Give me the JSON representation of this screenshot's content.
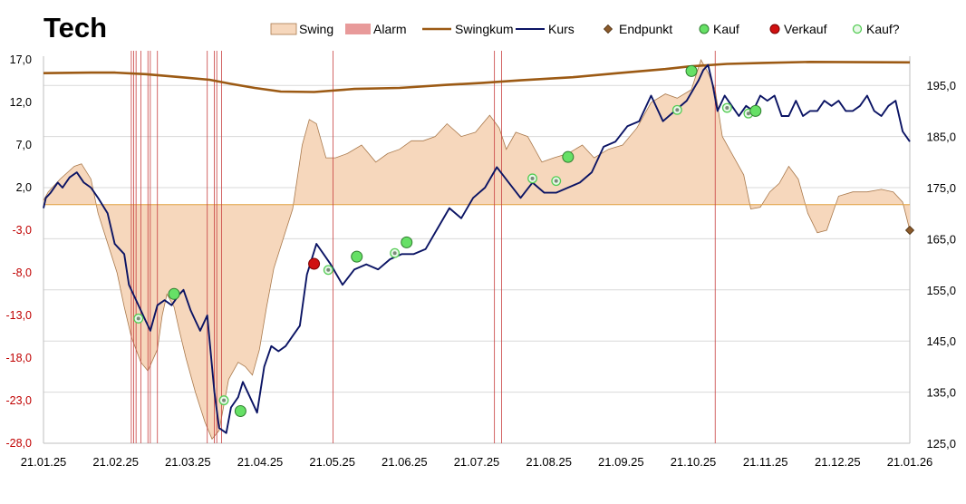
{
  "chart_data": {
    "type": "line",
    "title": "Tech",
    "legend": {
      "placement": "top-right",
      "items": [
        {
          "key": "swing",
          "label": "Swing",
          "kind": "area",
          "color": "#F6D7BC"
        },
        {
          "key": "alarm",
          "label": "Alarm",
          "kind": "rect",
          "color": "#E89A9A"
        },
        {
          "key": "swingkum",
          "label": "Swingkum",
          "kind": "line",
          "color": "#9C5A14"
        },
        {
          "key": "kurs",
          "label": "Kurs",
          "kind": "line",
          "color": "#0B1464"
        },
        {
          "key": "endpunkt",
          "label": "Endpunkt",
          "kind": "diamond",
          "color": "#8B5A2B"
        },
        {
          "key": "kauf",
          "label": "Kauf",
          "kind": "circle",
          "color": "#66E066"
        },
        {
          "key": "verkauf",
          "label": "Verkauf",
          "kind": "circle",
          "color": "#D01010"
        },
        {
          "key": "kauf_q",
          "label": "Kauf?",
          "kind": "ring",
          "color": "#66E066"
        }
      ]
    },
    "x_range": [
      "2025-01-21",
      "2026-01-21"
    ],
    "x_ticks": [
      "21.01.25",
      "21.02.25",
      "21.03.25",
      "21.04.25",
      "21.05.25",
      "21.06.25",
      "21.07.25",
      "21.08.25",
      "21.09.25",
      "21.10.25",
      "21.11.25",
      "21.12.25",
      "21.01.26"
    ],
    "y_left": {
      "range": [
        -28,
        17
      ],
      "ticks": [
        17.0,
        12.0,
        7.0,
        2.0,
        -3.0,
        -8.0,
        -13.0,
        -18.0,
        -23.0,
        -28.0
      ],
      "labels": [
        "17,0",
        "12,0",
        "7,0",
        "2,0",
        "-3,0",
        "-8,0",
        "-13,0",
        "-18,0",
        "-23,0",
        "-28,0"
      ]
    },
    "y_right": {
      "range": [
        125,
        200
      ],
      "ticks": [
        195,
        185,
        175,
        165,
        155,
        145,
        135,
        125
      ],
      "labels": [
        "195,0",
        "185,0",
        "175,0",
        "165,0",
        "155,0",
        "145,0",
        "135,0",
        "125,0"
      ]
    },
    "grid": true,
    "colors": {
      "swing_fill": "#F6D7BC",
      "swing_edge": "#A9794C",
      "alarm": "#C84040",
      "zero_line": "#E0A040",
      "swingkum": "#9C5A14",
      "kurs": "#0B1464",
      "grid": "#D9D9D9",
      "negative_label": "#C00000",
      "axis_text": "#000000"
    },
    "alarm_dates": [
      "2025-02-27",
      "2025-02-28",
      "2025-03-01",
      "2025-03-03",
      "2025-03-06",
      "2025-03-07",
      "2025-03-10",
      "2025-03-31",
      "2025-04-03",
      "2025-04-04",
      "2025-04-06",
      "2025-05-23",
      "2025-07-30",
      "2025-08-02",
      "2025-10-31"
    ],
    "series": [
      {
        "name": "Swing",
        "axis": "left",
        "x": [
          "2025-01-21",
          "2025-01-23",
          "2025-01-28",
          "2025-02-03",
          "2025-02-06",
          "2025-02-10",
          "2025-02-13",
          "2025-02-17",
          "2025-02-21",
          "2025-02-24",
          "2025-02-27",
          "2025-03-03",
          "2025-03-06",
          "2025-03-10",
          "2025-03-12",
          "2025-03-14",
          "2025-03-17",
          "2025-03-19",
          "2025-03-22",
          "2025-03-26",
          "2025-03-30",
          "2025-04-02",
          "2025-04-05",
          "2025-04-07",
          "2025-04-09",
          "2025-04-13",
          "2025-04-16",
          "2025-04-19",
          "2025-04-22",
          "2025-04-25",
          "2025-04-28",
          "2025-05-02",
          "2025-05-06",
          "2025-05-10",
          "2025-05-13",
          "2025-05-16",
          "2025-05-20",
          "2025-05-24",
          "2025-05-29",
          "2025-06-04",
          "2025-06-10",
          "2025-06-15",
          "2025-06-20",
          "2025-06-25",
          "2025-06-30",
          "2025-07-05",
          "2025-07-10",
          "2025-07-16",
          "2025-07-22",
          "2025-07-28",
          "2025-08-01",
          "2025-08-04",
          "2025-08-08",
          "2025-08-13",
          "2025-08-19",
          "2025-08-24",
          "2025-08-30",
          "2025-09-05",
          "2025-09-10",
          "2025-09-16",
          "2025-09-22",
          "2025-09-28",
          "2025-10-04",
          "2025-10-10",
          "2025-10-15",
          "2025-10-21",
          "2025-10-25",
          "2025-10-28",
          "2025-10-31",
          "2025-11-03",
          "2025-11-07",
          "2025-11-12",
          "2025-11-15",
          "2025-11-19",
          "2025-11-23",
          "2025-11-27",
          "2025-12-01",
          "2025-12-05",
          "2025-12-09",
          "2025-12-13",
          "2025-12-17",
          "2025-12-22",
          "2025-12-28",
          "2026-01-03",
          "2026-01-09",
          "2026-01-14",
          "2026-01-18",
          "2026-01-21"
        ],
        "values": [
          0.5,
          1.5,
          3.0,
          4.5,
          4.8,
          3.0,
          -1.0,
          -4.5,
          -8.0,
          -12.0,
          -15.5,
          -18.5,
          -19.5,
          -17.0,
          -13.0,
          -10.5,
          -12.0,
          -14.5,
          -18.0,
          -22.0,
          -25.5,
          -27.5,
          -26.5,
          -23.5,
          -20.5,
          -18.5,
          -19.0,
          -20.0,
          -17.0,
          -12.0,
          -7.5,
          -4.0,
          -0.5,
          7.0,
          10.0,
          9.5,
          5.5,
          5.5,
          6.0,
          7.0,
          5.0,
          6.0,
          6.5,
          7.5,
          7.5,
          8.0,
          9.5,
          8.0,
          8.5,
          10.5,
          9.0,
          6.5,
          8.5,
          8.0,
          5.0,
          5.5,
          6.0,
          7.0,
          5.5,
          6.5,
          7.0,
          9.0,
          12.0,
          13.0,
          12.5,
          13.5,
          17.0,
          15.5,
          13.5,
          8.0,
          6.0,
          3.5,
          -0.5,
          -0.3,
          1.5,
          2.5,
          4.5,
          3.0,
          -1.0,
          -3.3,
          -3.0,
          1.0,
          1.5,
          1.5,
          1.8,
          1.5,
          0.3,
          -3.0
        ]
      },
      {
        "name": "Swingkum",
        "axis": "right",
        "x": [
          "2025-01-21",
          "2025-02-10",
          "2025-02-20",
          "2025-03-05",
          "2025-03-20",
          "2025-04-01",
          "2025-04-10",
          "2025-04-20",
          "2025-05-01",
          "2025-05-15",
          "2025-06-01",
          "2025-06-20",
          "2025-07-10",
          "2025-07-25",
          "2025-08-10",
          "2025-09-01",
          "2025-09-20",
          "2025-10-10",
          "2025-10-20",
          "2025-11-05",
          "2025-11-20",
          "2025-12-10",
          "2026-01-21"
        ],
        "values": [
          197.4,
          197.5,
          197.5,
          197.2,
          196.6,
          196.1,
          195.3,
          194.5,
          193.8,
          193.7,
          194.3,
          194.5,
          195.1,
          195.5,
          196.0,
          196.6,
          197.4,
          198.2,
          198.7,
          199.2,
          199.4,
          199.6,
          199.5
        ]
      },
      {
        "name": "Kurs",
        "axis": "right",
        "x": [
          "2025-01-21",
          "2025-01-22",
          "2025-01-24",
          "2025-01-27",
          "2025-01-29",
          "2025-02-01",
          "2025-02-04",
          "2025-02-07",
          "2025-02-10",
          "2025-02-13",
          "2025-02-17",
          "2025-02-20",
          "2025-02-24",
          "2025-02-26",
          "2025-02-28",
          "2025-03-03",
          "2025-03-05",
          "2025-03-07",
          "2025-03-10",
          "2025-03-13",
          "2025-03-16",
          "2025-03-19",
          "2025-03-21",
          "2025-03-24",
          "2025-03-26",
          "2025-03-28",
          "2025-03-31",
          "2025-04-03",
          "2025-04-05",
          "2025-04-08",
          "2025-04-10",
          "2025-04-13",
          "2025-04-15",
          "2025-04-18",
          "2025-04-21",
          "2025-04-24",
          "2025-04-27",
          "2025-04-30",
          "2025-05-03",
          "2025-05-06",
          "2025-05-09",
          "2025-05-12",
          "2025-05-16",
          "2025-05-19",
          "2025-05-22",
          "2025-05-27",
          "2025-06-01",
          "2025-06-06",
          "2025-06-11",
          "2025-06-16",
          "2025-06-21",
          "2025-06-26",
          "2025-07-01",
          "2025-07-06",
          "2025-07-11",
          "2025-07-16",
          "2025-07-21",
          "2025-07-26",
          "2025-07-31",
          "2025-08-05",
          "2025-08-10",
          "2025-08-15",
          "2025-08-20",
          "2025-08-25",
          "2025-08-30",
          "2025-09-04",
          "2025-09-09",
          "2025-09-14",
          "2025-09-19",
          "2025-09-24",
          "2025-09-29",
          "2025-10-04",
          "2025-10-09",
          "2025-10-14",
          "2025-10-19",
          "2025-10-24",
          "2025-10-26",
          "2025-10-28",
          "2025-10-30",
          "2025-11-01",
          "2025-11-04",
          "2025-11-07",
          "2025-11-10",
          "2025-11-13",
          "2025-11-16",
          "2025-11-19",
          "2025-11-22",
          "2025-11-25",
          "2025-11-28",
          "2025-12-01",
          "2025-12-04",
          "2025-12-07",
          "2025-12-10",
          "2025-12-13",
          "2025-12-16",
          "2025-12-19",
          "2025-12-22",
          "2025-12-25",
          "2025-12-28",
          "2025-12-31",
          "2026-01-03",
          "2026-01-06",
          "2026-01-09",
          "2026-01-12",
          "2026-01-15",
          "2026-01-18",
          "2026-01-21"
        ],
        "values": [
          171,
          173,
          174,
          176,
          175,
          177,
          178,
          176,
          175,
          173,
          170,
          164,
          162,
          156,
          154,
          151,
          149,
          147,
          152,
          153,
          152,
          154,
          155,
          151,
          149,
          147,
          150,
          135,
          128,
          127,
          132,
          134,
          137,
          134,
          131,
          140,
          144,
          143,
          144,
          146,
          148,
          158,
          164,
          162,
          160,
          156,
          159,
          160,
          159,
          161,
          162,
          162,
          163,
          167,
          171,
          169,
          173,
          175,
          179,
          176,
          173,
          176,
          174,
          174,
          175,
          176,
          178,
          183,
          184,
          187,
          188,
          193,
          188,
          190,
          192,
          196,
          198,
          199,
          195,
          190,
          193,
          191,
          189,
          191,
          190,
          193,
          192,
          193,
          189,
          189,
          192,
          189,
          190,
          190,
          192,
          191,
          192,
          190,
          190,
          191,
          193,
          190,
          189,
          191,
          192,
          186,
          184
        ]
      },
      {
        "name": "Endpunkt",
        "axis": "left",
        "x": [
          "2026-01-21"
        ],
        "values": [
          -3.0
        ]
      },
      {
        "name": "Kauf",
        "axis": "right",
        "x": [
          "2025-03-17",
          "2025-04-14",
          "2025-06-02",
          "2025-06-23",
          "2025-08-30",
          "2025-10-21",
          "2025-11-17"
        ],
        "values": [
          154.2,
          131.3,
          161.5,
          164.3,
          181.0,
          197.8,
          190.0
        ]
      },
      {
        "name": "Verkauf",
        "axis": "right",
        "x": [
          "2025-05-15"
        ],
        "values": [
          160.1
        ]
      },
      {
        "name": "Kauf?",
        "axis": "right",
        "x": [
          "2025-03-02",
          "2025-04-07",
          "2025-05-21",
          "2025-06-18",
          "2025-08-15",
          "2025-08-25",
          "2025-10-15",
          "2025-11-05",
          "2025-11-14"
        ],
        "values": [
          149.4,
          133.4,
          158.9,
          162.2,
          176.8,
          176.3,
          190.2,
          190.6,
          189.5
        ]
      }
    ]
  }
}
